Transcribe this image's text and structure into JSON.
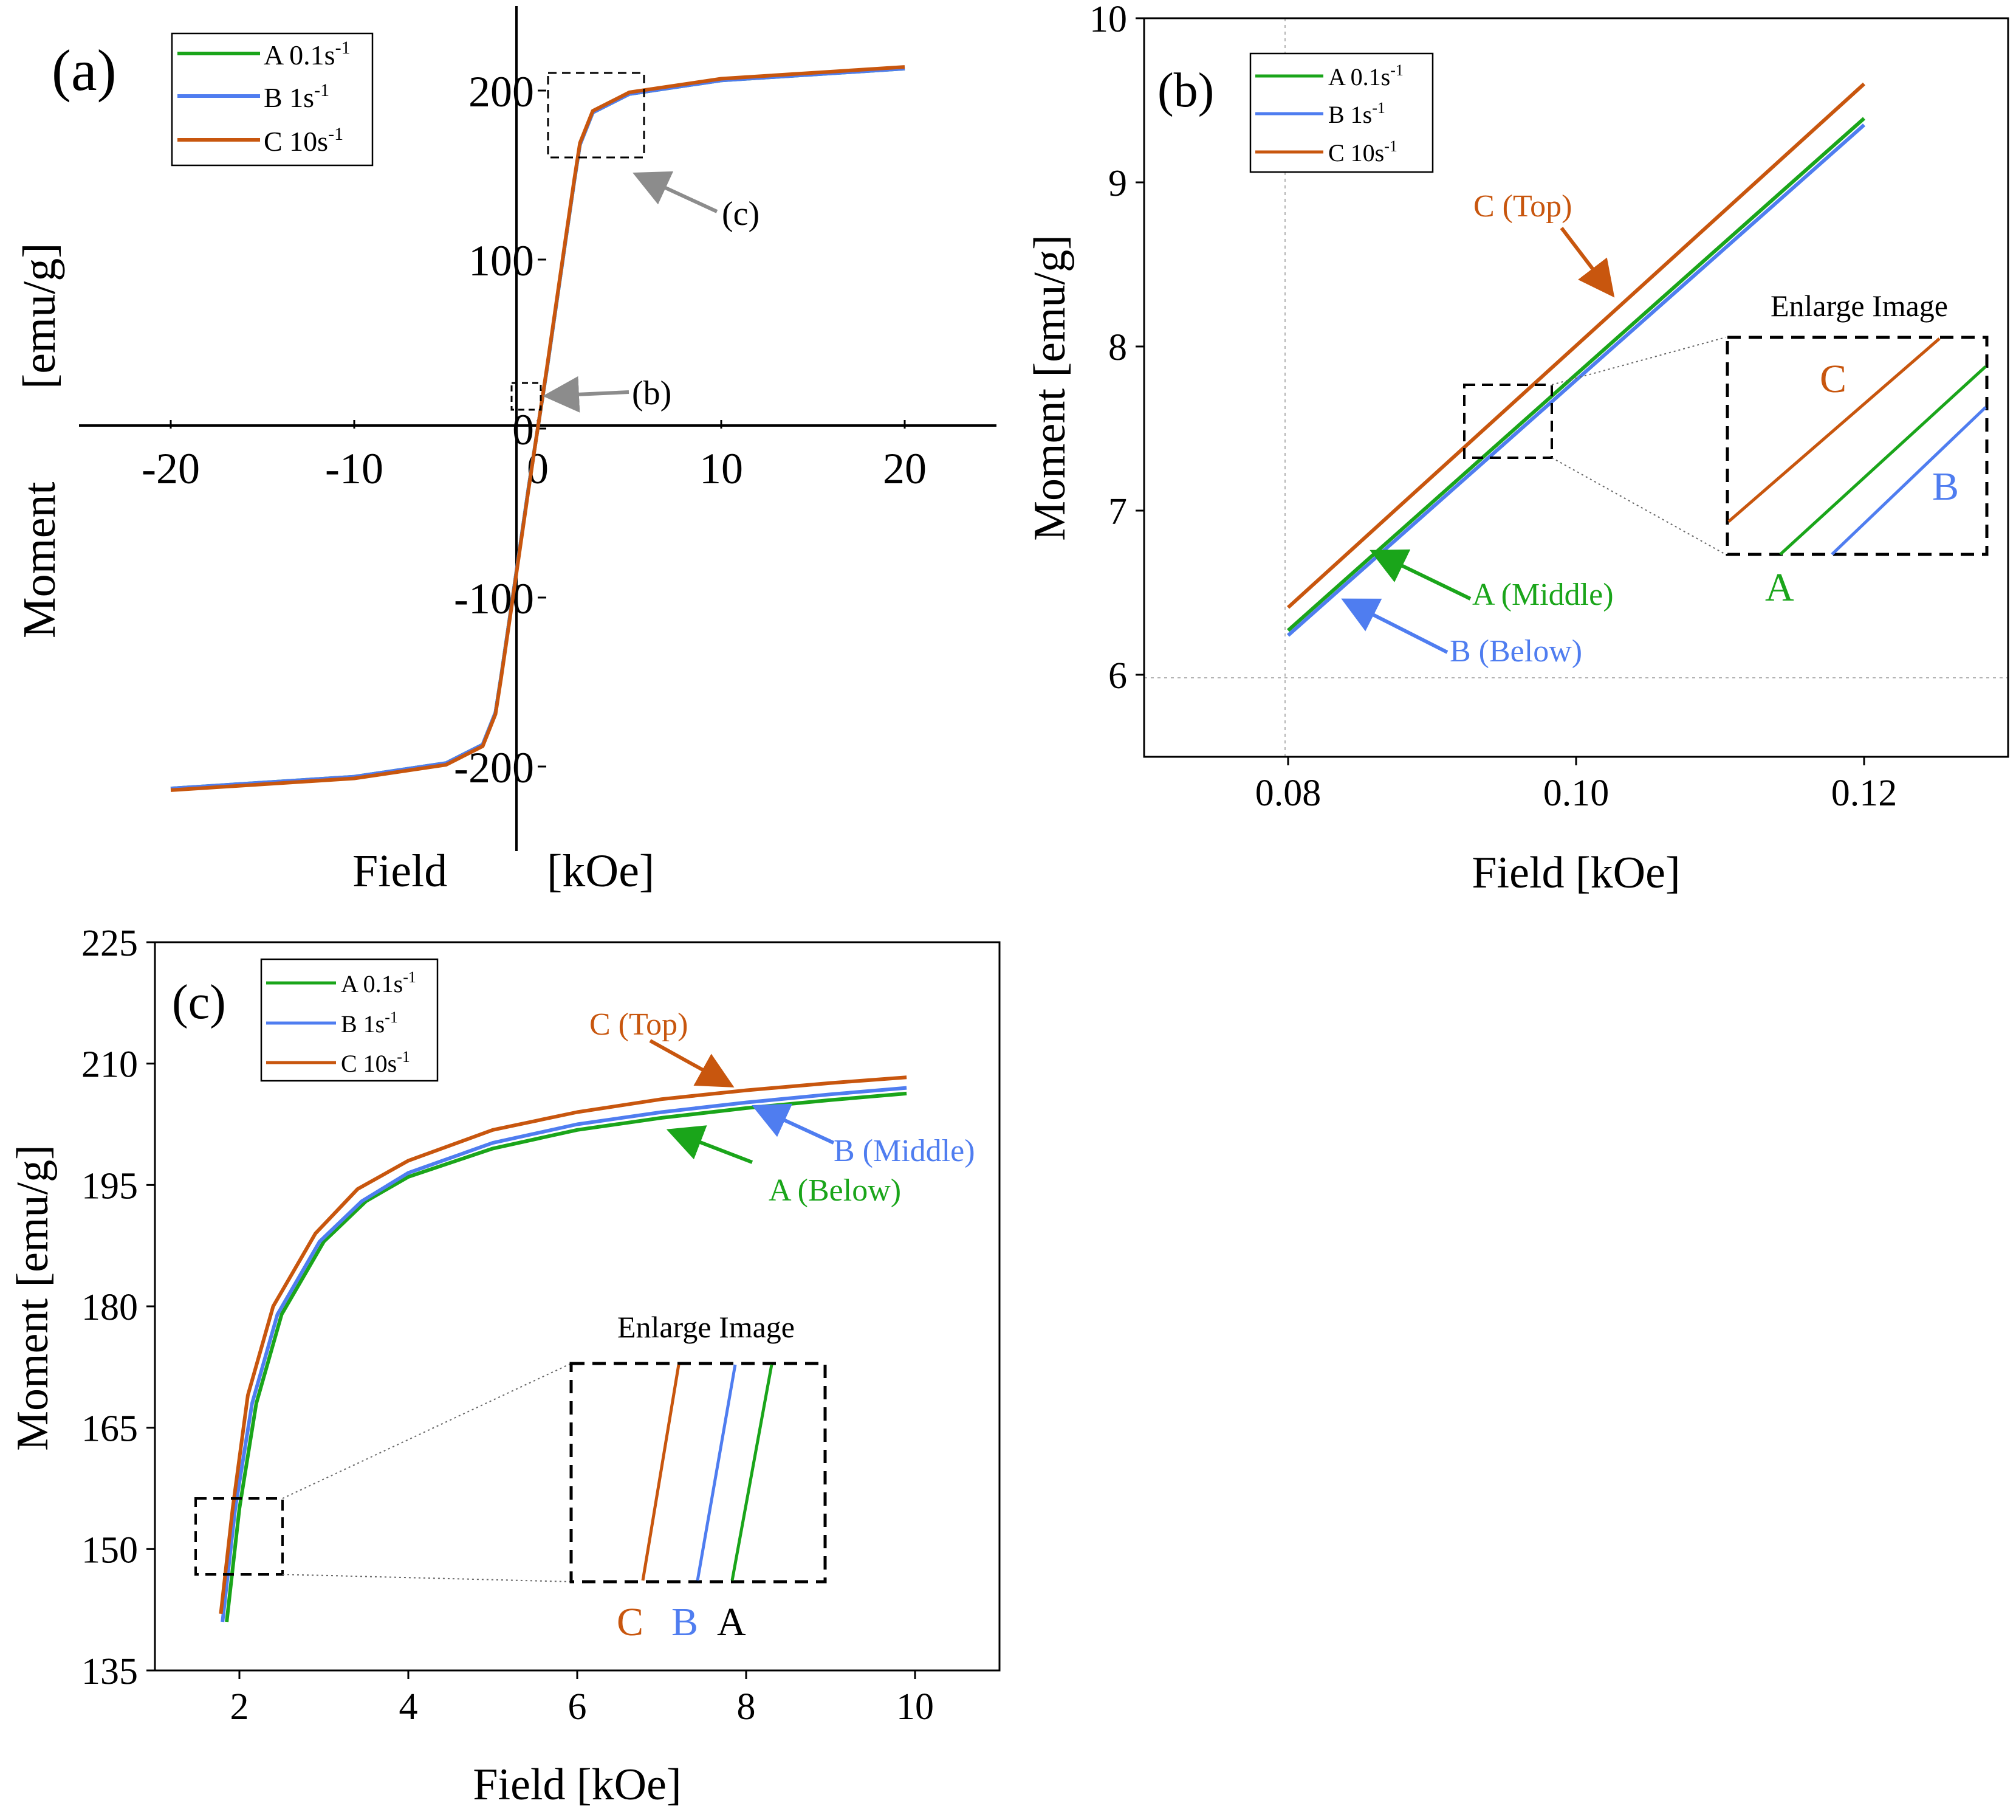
{
  "colors": {
    "A": "#1aa51a",
    "B": "#4f7df0",
    "C": "#c8560e",
    "axis": "#000000",
    "box": "#000000",
    "grid": "#b4b4b4",
    "pointer": "#8c8c8c"
  },
  "chart_data": [
    {
      "panel": "(a)",
      "type": "line",
      "xlabel": "Field",
      "xunit": "[kOe]",
      "ylabel": "Moment",
      "yunit": "[emu/g]",
      "xlim": [
        -25,
        25
      ],
      "ylim": [
        -250,
        250
      ],
      "xticks": [
        "-20",
        "-10",
        "0",
        "10",
        "20"
      ],
      "yticks": [
        "-200",
        "-100",
        "0",
        "100",
        "200"
      ],
      "legend": [
        "A 0.1s",
        "B 1s",
        "C 10s"
      ],
      "legend_sup": "-1",
      "legend_position": "top-left",
      "series": [
        {
          "name": "A 0.1s",
          "x": [
            -20,
            -10,
            -5,
            -3,
            -2.3,
            -2,
            -1.5,
            -0.5,
            0,
            0.5,
            1.5,
            2,
            2.3,
            3,
            5,
            10,
            20
          ],
          "y": [
            -213,
            -206,
            -198,
            -187,
            -168,
            -147,
            -110,
            -35,
            0,
            35,
            110,
            147,
            168,
            187,
            198,
            206,
            213
          ]
        },
        {
          "name": "B 1s",
          "x": [
            -20,
            -10,
            -5,
            -3,
            -2.3,
            -2,
            -1.5,
            -0.5,
            0,
            0.5,
            1.5,
            2,
            2.3,
            3,
            5,
            10,
            20
          ],
          "y": [
            -213,
            -206,
            -198,
            -187,
            -168,
            -147,
            -110,
            -35,
            0,
            35,
            110,
            147,
            168,
            187,
            198,
            206,
            213
          ]
        },
        {
          "name": "C 10s",
          "x": [
            -20,
            -10,
            -5,
            -3,
            -2.3,
            -2,
            -1.5,
            -0.5,
            0,
            0.5,
            1.5,
            2,
            2.3,
            3,
            5,
            10,
            20
          ],
          "y": [
            -214,
            -207,
            -199,
            -188,
            -169,
            -148,
            -111,
            -36,
            0,
            36,
            111,
            148,
            169,
            188,
            199,
            207,
            214
          ]
        }
      ],
      "annotations": {
        "c": "(c)",
        "b": "(b)"
      },
      "zoom_boxes": [
        {
          "label": "(c)",
          "x": [
            1.7,
            6.7
          ],
          "y": [
            160,
            210
          ]
        },
        {
          "label": "(b)",
          "x": [
            -0.2,
            1.3
          ],
          "y": [
            2,
            22
          ]
        }
      ]
    },
    {
      "panel": "(b)",
      "type": "line",
      "xlabel": "Field [kOe]",
      "ylabel": "Moment [emu/g]",
      "xlim": [
        0.07,
        0.13
      ],
      "ylim": [
        5.5,
        10
      ],
      "xticks": [
        "0.08",
        "0.10",
        "0.12"
      ],
      "yticks": [
        "6",
        "7",
        "8",
        "9",
        "10"
      ],
      "legend": [
        "A 0.1s",
        "B 1s",
        "C 10s"
      ],
      "legend_sup": "-1",
      "legend_position": "top-left",
      "series": [
        {
          "name": "A 0.1s",
          "x": [
            0.08,
            0.12
          ],
          "y": [
            6.27,
            9.39
          ]
        },
        {
          "name": "B 1s",
          "x": [
            0.08,
            0.12
          ],
          "y": [
            6.24,
            9.35
          ]
        },
        {
          "name": "C 10s",
          "x": [
            0.08,
            0.12
          ],
          "y": [
            6.41,
            9.6
          ]
        }
      ],
      "annotations": {
        "top": "C (Top)",
        "middle": "A (Middle)",
        "below": "B (Below)"
      },
      "inset": {
        "title": "Enlarge Image",
        "labels": [
          "C",
          "B",
          "A"
        ]
      }
    },
    {
      "panel": "(c)",
      "type": "line",
      "xlabel": "Field [kOe]",
      "ylabel": "Moment [emu/g]",
      "xlim": [
        1,
        11
      ],
      "ylim": [
        135,
        225
      ],
      "xticks": [
        "2",
        "4",
        "6",
        "8",
        "10"
      ],
      "yticks": [
        "135",
        "150",
        "165",
        "180",
        "195",
        "210",
        "225"
      ],
      "legend": [
        "A 0.1s",
        "B 1s",
        "C 10s"
      ],
      "legend_sup": "-1",
      "legend_position": "top-left",
      "series": [
        {
          "name": "A 0.1s",
          "x": [
            1.85,
            2.0,
            2.2,
            2.5,
            3.0,
            3.5,
            4.0,
            5.0,
            6.0,
            7.0,
            8.0,
            9.0,
            9.9
          ],
          "y": [
            141,
            155,
            168,
            179,
            188,
            193,
            196,
            199.5,
            201.8,
            203.3,
            204.5,
            205.5,
            206.3
          ]
        },
        {
          "name": "B 1s",
          "x": [
            1.8,
            1.95,
            2.15,
            2.45,
            2.95,
            3.45,
            4.0,
            5.0,
            6.0,
            7.0,
            8.0,
            9.0,
            9.9
          ],
          "y": [
            141,
            155,
            168,
            179,
            188,
            193,
            196.5,
            200.2,
            202.5,
            204,
            205.2,
            206.2,
            207
          ]
        },
        {
          "name": "C 10s",
          "x": [
            1.78,
            1.92,
            2.1,
            2.4,
            2.9,
            3.4,
            4.0,
            5.0,
            6.0,
            7.0,
            8.0,
            9.0,
            9.9
          ],
          "y": [
            142,
            155,
            169,
            180,
            189,
            194.5,
            198,
            201.8,
            204,
            205.6,
            206.7,
            207.6,
            208.3
          ]
        }
      ],
      "annotations": {
        "top": "C (Top)",
        "middle": "B (Middle)",
        "below": "A (Below)"
      },
      "inset": {
        "title": "Enlarge Image",
        "labels": [
          "C",
          "B",
          "A"
        ]
      }
    }
  ]
}
